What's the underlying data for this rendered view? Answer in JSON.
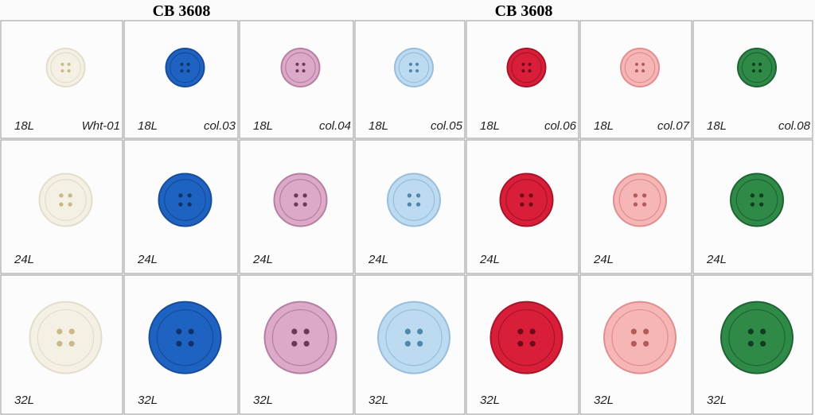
{
  "headers": [
    "CB 3608",
    "CB 3608"
  ],
  "codes": [
    "Wht-01",
    "col.03",
    "col.04",
    "col.05",
    "col.06",
    "col.07",
    "col.08"
  ],
  "rows": [
    [
      "18L",
      "18L",
      "18L",
      "18L",
      "18L",
      "18L",
      "18L"
    ],
    [
      "24L",
      "24L",
      "24L",
      "24L",
      "24L",
      "24L",
      "24L"
    ],
    [
      "32L",
      "32L",
      "32L",
      "32L",
      "32L",
      "32L",
      "32L"
    ]
  ]
}
